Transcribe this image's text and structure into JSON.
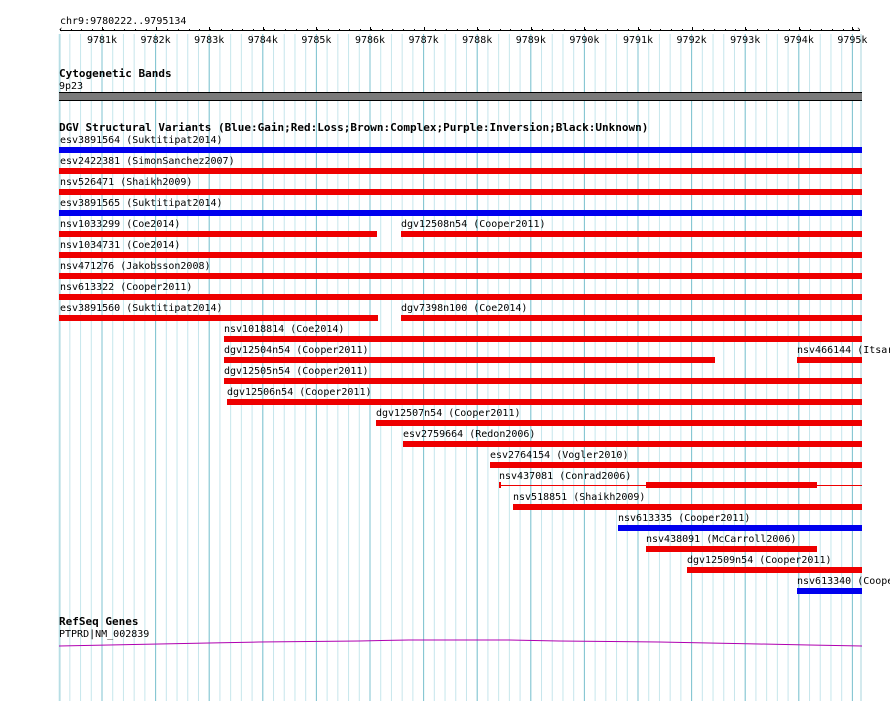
{
  "ruler": {
    "range_label": "chr9:9780222..9795134",
    "ticks": [
      "9781k",
      "9782k",
      "9783k",
      "9784k",
      "9785k",
      "9786k",
      "9787k",
      "9788k",
      "9789k",
      "9790k",
      "9791k",
      "9792k",
      "9793k",
      "9794k",
      "9795k"
    ]
  },
  "cytoband": {
    "title": "Cytogenetic Bands",
    "band": "9p23"
  },
  "dgv": {
    "title": "DGV Structural Variants (Blue:Gain;Red:Loss;Brown:Complex;Purple:Inversion;Black:Unknown)",
    "colors": {
      "gain": "#0000ee",
      "loss": "#ee0000"
    },
    "variants": [
      {
        "id": "esv3891564",
        "label": "esv3891564 (Suktitipat2014)",
        "type": "gain"
      },
      {
        "id": "esv2422381",
        "label": "esv2422381 (SimonSanchez2007)",
        "type": "loss"
      },
      {
        "id": "nsv526471",
        "label": "nsv526471 (Shaikh2009)",
        "type": "loss"
      },
      {
        "id": "esv3891565",
        "label": "esv3891565 (Suktitipat2014)",
        "type": "gain"
      },
      {
        "id": "nsv1033299",
        "label": "nsv1033299 (Coe2014)",
        "type": "loss"
      },
      {
        "id": "dgv12508n54",
        "label": "dgv12508n54 (Cooper2011)",
        "type": "loss"
      },
      {
        "id": "nsv1034731",
        "label": "nsv1034731 (Coe2014)",
        "type": "loss"
      },
      {
        "id": "nsv471276",
        "label": "nsv471276 (Jakobsson2008)",
        "type": "loss"
      },
      {
        "id": "nsv613322",
        "label": "nsv613322 (Cooper2011)",
        "type": "loss"
      },
      {
        "id": "esv3891560",
        "label": "esv3891560 (Suktitipat2014)",
        "type": "loss"
      },
      {
        "id": "dgv7398n100",
        "label": "dgv7398n100 (Coe2014)",
        "type": "loss"
      },
      {
        "id": "nsv1018814",
        "label": "nsv1018814 (Coe2014)",
        "type": "loss"
      },
      {
        "id": "dgv12504n54",
        "label": "dgv12504n54 (Cooper2011)",
        "type": "loss"
      },
      {
        "id": "nsv466144",
        "label": "nsv466144 (Itsar",
        "type": "loss"
      },
      {
        "id": "dgv12505n54",
        "label": "dgv12505n54 (Cooper2011)",
        "type": "loss"
      },
      {
        "id": "dgv12506n54",
        "label": "dgv12506n54 (Cooper2011)",
        "type": "loss"
      },
      {
        "id": "dgv12507n54",
        "label": "dgv12507n54 (Cooper2011)",
        "type": "loss"
      },
      {
        "id": "esv2759664",
        "label": "esv2759664 (Redon2006)",
        "type": "loss"
      },
      {
        "id": "esv2764154",
        "label": "esv2764154 (Vogler2010)",
        "type": "loss"
      },
      {
        "id": "nsv437081",
        "label": "nsv437081 (Conrad2006)",
        "type": "loss"
      },
      {
        "id": "nsv518851",
        "label": "nsv518851 (Shaikh2009)",
        "type": "loss"
      },
      {
        "id": "nsv613335",
        "label": "nsv613335 (Cooper2011)",
        "type": "gain"
      },
      {
        "id": "nsv438091",
        "label": "nsv438091 (McCarroll2006)",
        "type": "loss"
      },
      {
        "id": "dgv12509n54",
        "label": "dgv12509n54 (Cooper2011)",
        "type": "loss"
      },
      {
        "id": "nsv613340",
        "label": "nsv613340 (Coope",
        "type": "gain"
      }
    ]
  },
  "refseq": {
    "title": "RefSeq Genes",
    "gene_label": "PTPRD|NM_002839",
    "color": "#b000b0"
  }
}
